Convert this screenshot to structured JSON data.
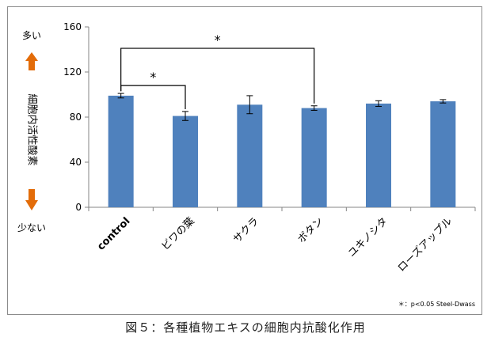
{
  "chart_data": {
    "type": "bar",
    "categories": [
      "control",
      "ビワの葉",
      "サクラ",
      "ボタン",
      "ユキノシタ",
      "ローズアップル"
    ],
    "values": [
      99,
      81,
      91,
      88,
      92,
      94
    ],
    "error": [
      2,
      4,
      8,
      2,
      2.5,
      1.5
    ],
    "ylim": [
      0,
      160
    ],
    "yticks": [
      "0",
      "40",
      "80",
      "120",
      "160"
    ],
    "ytick_values": [
      0,
      40,
      80,
      120,
      160
    ],
    "ylabel": "細胞内活性酸素",
    "y_top_label": "多い",
    "y_bottom_label": "少ない",
    "bar_color": "#4f81bd",
    "arrow_color": "#e36c09",
    "grid": false,
    "significance": [
      {
        "from": 0,
        "to": 1,
        "label": "*"
      },
      {
        "from": 0,
        "to": 3,
        "label": "*"
      }
    ],
    "footnote": "＊：p<0.05 Steel-Dwass"
  },
  "caption": "図５：各種植物エキスの細胞内抗酸化作用"
}
